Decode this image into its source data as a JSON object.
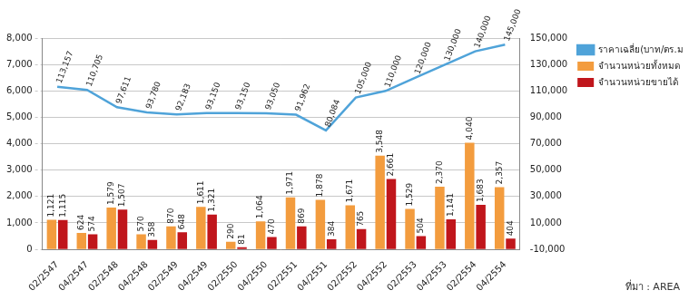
{
  "chart_data": {
    "type": "bar",
    "categories": [
      "02/2547",
      "04/2547",
      "02/2548",
      "04/2548",
      "02/2549",
      "04/2549",
      "02/2550",
      "04/2550",
      "02/2551",
      "04/2551",
      "02/2552",
      "04/2552",
      "02/2553",
      "04/2553",
      "02/2554",
      "04/2554"
    ],
    "series": [
      {
        "name": "จำนวนหน่วยทั้งหมด",
        "color": "#f39c3e",
        "type": "bar",
        "values": [
          1121,
          624,
          1579,
          570,
          870,
          1611,
          290,
          1064,
          1971,
          1878,
          1671,
          3548,
          1529,
          2370,
          4040,
          2357
        ],
        "value_labels": [
          "1,121",
          "624",
          "1,579",
          "570",
          "870",
          "1,611",
          "290",
          "1,064",
          "1,971",
          "1,878",
          "1,671",
          "3,548",
          "1,529",
          "2,370",
          "4,040",
          "2,357"
        ]
      },
      {
        "name": "จำนวนหน่วยขายได้",
        "color": "#c0161c",
        "type": "bar",
        "values": [
          1115,
          574,
          1507,
          358,
          648,
          1321,
          81,
          470,
          869,
          384,
          765,
          2661,
          504,
          1141,
          1683,
          404
        ],
        "value_labels": [
          "1,115",
          "574",
          "1,507",
          "358",
          "648",
          "1,321",
          "81",
          "470",
          "869",
          "384",
          "765",
          "2,661",
          "504",
          "1,141",
          "1,683",
          "404"
        ]
      },
      {
        "name": "ราคาเฉลี่ย(บาท/ตร.ม.)",
        "color": "#4fa3d9",
        "type": "line",
        "axis": "y2",
        "values": [
          113157,
          110705,
          97611,
          93780,
          92183,
          93150,
          93150,
          93050,
          91962,
          80084,
          105000,
          110000,
          120000,
          130000,
          140000,
          145000
        ],
        "value_labels": [
          "113,157",
          "110,705",
          "97,611",
          "93,780",
          "92,183",
          "93,150",
          "93,150",
          "93,050",
          "91,962",
          "80,084",
          "105,000",
          "110,000",
          "120,000",
          "130,000",
          "140,000",
          "145,000"
        ]
      }
    ],
    "ylim": [
      0,
      8000
    ],
    "yticks": [
      0,
      {
        "value": 1000,
        "label": "1,000"
      },
      {
        "value": 2000,
        "label": "2,000"
      },
      {
        "value": 3000,
        "label": "3,000"
      },
      {
        "value": 4000,
        "label": "4,000"
      },
      {
        "value": 5000,
        "label": "5,000"
      },
      {
        "value": 6000,
        "label": "6,000"
      },
      {
        "value": 7000,
        "label": "7,000"
      },
      {
        "value": 8000,
        "label": "8,000"
      }
    ],
    "y2lim": [
      -10000,
      150000
    ],
    "y2ticks": [
      {
        "value": -10000,
        "label": "-10,000"
      },
      {
        "value": 10000,
        "label": "10,000"
      },
      {
        "value": 30000,
        "label": "30,000"
      },
      {
        "value": 50000,
        "label": "50,000"
      },
      {
        "value": 70000,
        "label": "70,000"
      },
      {
        "value": 90000,
        "label": "90,000"
      },
      {
        "value": 110000,
        "label": "110,000"
      },
      {
        "value": 130000,
        "label": "130,000"
      },
      {
        "value": 150000,
        "label": "150,000"
      }
    ],
    "grid": true,
    "legend": "right",
    "data_labels": true,
    "source": "ที่มา : AREA"
  }
}
